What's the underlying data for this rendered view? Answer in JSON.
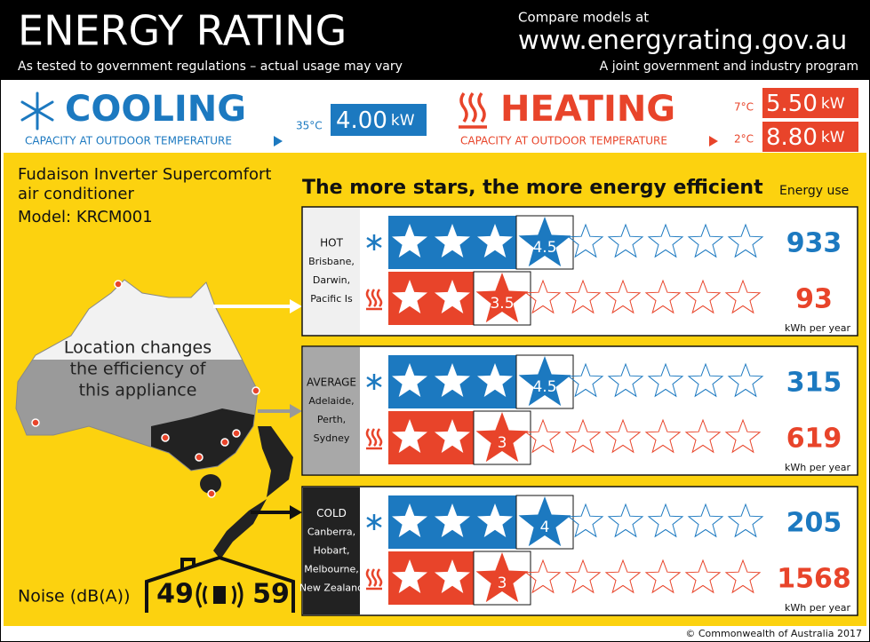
{
  "header": {
    "title": "ENERGY RATING",
    "subtitle": "As tested to government regulations – actual usage may vary",
    "compare": "Compare models at",
    "url": "www.energyrating.gov.au",
    "program": "A joint government and industry program"
  },
  "capacity": {
    "label": "CAPACITY AT OUTDOOR TEMPERATURE",
    "cooling": {
      "title": "COOLING",
      "ratings": [
        {
          "temp": "35°C",
          "value": "4.00",
          "unit": "kW"
        }
      ]
    },
    "heating": {
      "title": "HEATING",
      "ratings": [
        {
          "temp": "7°C",
          "value": "5.50",
          "unit": "kW"
        },
        {
          "temp": "2°C",
          "value": "8.80",
          "unit": "kW"
        }
      ]
    }
  },
  "product": {
    "name_lines": [
      "Fudaison Inverter Supercomfort",
      "air conditioner"
    ],
    "model": "Model: KRCM001"
  },
  "efficiency": {
    "heading": "The more stars, the more energy efficient",
    "energy_label": "Energy use",
    "unit": "kWh per year",
    "zones": [
      {
        "name": "HOT",
        "places": [
          "Brisbane,",
          "Darwin,",
          "Pacific Is"
        ],
        "cooling": {
          "stars": 4.5,
          "energy": 933
        },
        "heating": {
          "stars": 3.5,
          "energy": 93
        }
      },
      {
        "name": "AVERAGE",
        "places": [
          "Adelaide,",
          "Perth,",
          "Sydney"
        ],
        "cooling": {
          "stars": 4.5,
          "energy": 315
        },
        "heating": {
          "stars": 3,
          "energy": 619
        }
      },
      {
        "name": "COLD",
        "places": [
          "Canberra,",
          "Hobart,",
          "Melbourne,",
          "New Zealand"
        ],
        "cooling": {
          "stars": 4,
          "energy": 205
        },
        "heating": {
          "stars": 3,
          "energy": 1568
        }
      }
    ]
  },
  "map": {
    "caption_lines": [
      "Location changes",
      "the efficiency of",
      "this appliance"
    ]
  },
  "noise": {
    "label": "Noise (dB(A))",
    "indoor": 49,
    "outdoor": 59
  },
  "footer": "© Commonwealth of Australia 2017"
}
